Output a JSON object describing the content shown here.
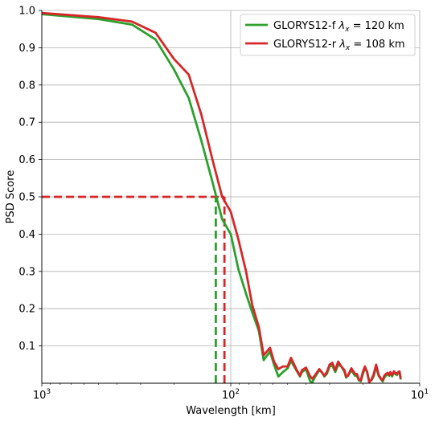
{
  "chart_data": {
    "type": "line",
    "xlabel": "Wavelength [km]",
    "ylabel": "PSD Score",
    "x_scale": "log",
    "x_inverted": true,
    "xlim": [
      1000,
      10
    ],
    "ylim": [
      0,
      1.0
    ],
    "grid": true,
    "legend_position": "top-right",
    "x_major_ticks": [
      {
        "value": 1000,
        "base": "10",
        "exp": "3"
      },
      {
        "value": 100,
        "base": "10",
        "exp": "2"
      },
      {
        "value": 10,
        "base": "10",
        "exp": "1"
      }
    ],
    "y_ticks": [
      {
        "value": 0.1,
        "label": "0.1"
      },
      {
        "value": 0.2,
        "label": "0.2"
      },
      {
        "value": 0.3,
        "label": "0.3"
      },
      {
        "value": 0.4,
        "label": "0.4"
      },
      {
        "value": 0.5,
        "label": "0.5"
      },
      {
        "value": 0.6,
        "label": "0.6"
      },
      {
        "value": 0.7,
        "label": "0.7"
      },
      {
        "value": 0.8,
        "label": "0.8"
      },
      {
        "value": 0.9,
        "label": "0.9"
      },
      {
        "value": 1.0,
        "label": "1.0"
      }
    ],
    "series": [
      {
        "name": "GLORYS12-f",
        "legend_prefix": "GLORYS12-f  ",
        "legend_symbol": "λ",
        "legend_subscript": "x",
        "legend_suffix": " = 120 km",
        "color": "#2ca02c",
        "x": [
          1000,
          500,
          333,
          250,
          200,
          167,
          143,
          125,
          111,
          100,
          91,
          83,
          77,
          71,
          67,
          62,
          59,
          56,
          53,
          50,
          48,
          45,
          43,
          42,
          40,
          38,
          37,
          36,
          34,
          33,
          32,
          31,
          30,
          29,
          28,
          27,
          26,
          25,
          24.5,
          24,
          23,
          22,
          21.5,
          21,
          20.5,
          20,
          19.5,
          19,
          18.5,
          18,
          17.5,
          17,
          16.5,
          16,
          15.7,
          15.4,
          15.1,
          14.8,
          14.5,
          14.3,
          14,
          13.7,
          13.5,
          13.2,
          13,
          12.8,
          12.6
        ],
        "y": [
          0.99,
          0.977,
          0.962,
          0.922,
          0.842,
          0.765,
          0.65,
          0.54,
          0.44,
          0.4,
          0.305,
          0.24,
          0.19,
          0.14,
          0.062,
          0.085,
          0.05,
          0.018,
          0.03,
          0.04,
          0.06,
          0.035,
          0.018,
          0.03,
          0.038,
          0.005,
          0.003,
          0.015,
          0.035,
          0.03,
          0.018,
          0.025,
          0.045,
          0.048,
          0.03,
          0.05,
          0.045,
          0.03,
          0.015,
          0.02,
          0.035,
          0.02,
          0.02,
          0.008,
          0.005,
          0.025,
          0.04,
          0.032,
          0.005,
          0.008,
          0.02,
          0.045,
          0.02,
          0.01,
          0.005,
          0.015,
          0.02,
          0.025,
          0.02,
          0.028,
          0.018,
          0.03,
          0.025,
          0.022,
          0.028,
          0.03,
          0.01
        ]
      },
      {
        "name": "GLORYS12-r",
        "legend_prefix": "GLORYS12-r  ",
        "legend_symbol": "λ",
        "legend_subscript": "x",
        "legend_suffix": " = 108 km",
        "color": "#d62728",
        "x": [
          1000,
          500,
          333,
          250,
          200,
          167,
          143,
          125,
          111,
          100,
          91,
          83,
          77,
          71,
          67,
          62,
          59,
          56,
          53,
          50,
          48,
          45,
          43,
          42,
          40,
          38,
          37,
          36,
          34,
          33,
          32,
          31,
          30,
          29,
          28,
          27,
          26,
          25,
          24.5,
          24,
          23,
          22,
          21.5,
          21,
          20.5,
          20,
          19.5,
          19,
          18.5,
          18,
          17.5,
          17,
          16.5,
          16,
          15.7,
          15.4,
          15.1,
          14.8,
          14.5,
          14.3,
          14,
          13.7,
          13.5,
          13.2,
          13,
          12.8,
          12.6
        ],
        "y": [
          0.993,
          0.982,
          0.97,
          0.94,
          0.87,
          0.828,
          0.72,
          0.6,
          0.5,
          0.46,
          0.385,
          0.3,
          0.21,
          0.15,
          0.075,
          0.095,
          0.058,
          0.038,
          0.045,
          0.045,
          0.068,
          0.038,
          0.02,
          0.035,
          0.042,
          0.018,
          0.012,
          0.02,
          0.038,
          0.03,
          0.02,
          0.03,
          0.05,
          0.055,
          0.035,
          0.058,
          0.045,
          0.035,
          0.018,
          0.02,
          0.04,
          0.025,
          0.025,
          0.01,
          0.008,
          0.03,
          0.045,
          0.03,
          0.003,
          0.01,
          0.025,
          0.05,
          0.022,
          0.012,
          0.008,
          0.02,
          0.025,
          0.028,
          0.022,
          0.03,
          0.022,
          0.032,
          0.028,
          0.025,
          0.03,
          0.032,
          0.012
        ]
      }
    ],
    "reference_lines": [
      {
        "name": "threshold",
        "orientation": "horizontal",
        "y": 0.5,
        "x_from": 1000,
        "x_to": 108,
        "color": "#d62728"
      },
      {
        "name": "glorys12-f-cutoff",
        "orientation": "vertical",
        "x": 120,
        "y_from": 0,
        "y_to": 0.5,
        "color": "#2ca02c"
      },
      {
        "name": "glorys12-r-cutoff",
        "orientation": "vertical",
        "x": 108,
        "y_from": 0,
        "y_to": 0.5,
        "color": "#d62728"
      }
    ]
  }
}
